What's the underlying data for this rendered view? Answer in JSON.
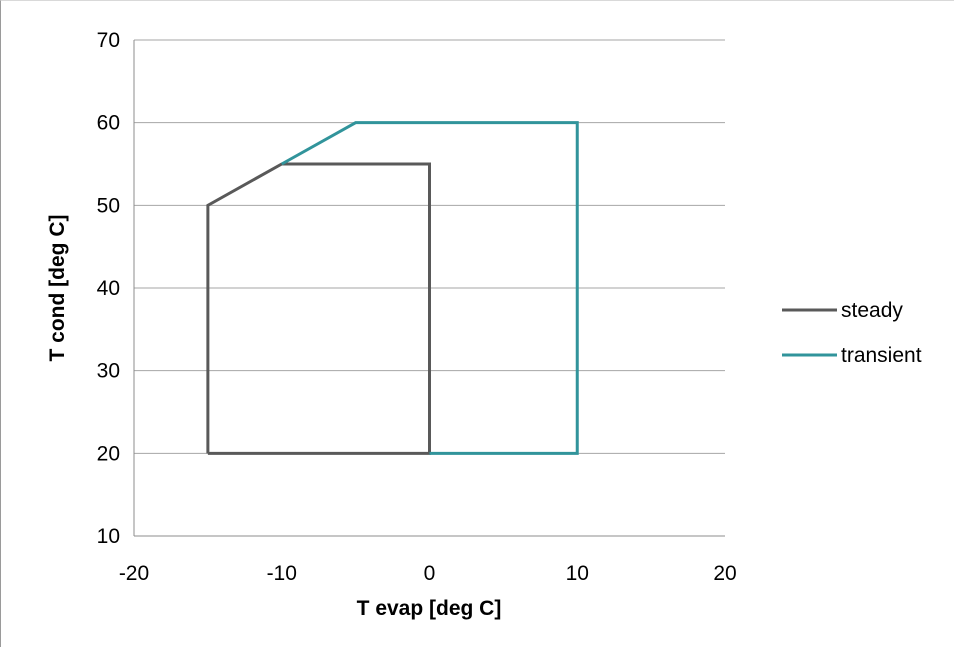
{
  "chart_data": {
    "type": "line",
    "title": "",
    "xlabel": "T evap [deg C]",
    "ylabel": "T cond [deg C]",
    "xlim": [
      -20,
      20
    ],
    "ylim": [
      10,
      70
    ],
    "x_ticks": [
      -20,
      -10,
      0,
      10,
      20
    ],
    "y_ticks": [
      10,
      20,
      30,
      40,
      50,
      60,
      70
    ],
    "grid": "horizontal",
    "legend_position": "right",
    "series": [
      {
        "name": "steady",
        "color": "#595959",
        "points": [
          [
            -15,
            20
          ],
          [
            -15,
            50
          ],
          [
            -10,
            55
          ],
          [
            0,
            55
          ],
          [
            0,
            20
          ],
          [
            -15,
            20
          ]
        ]
      },
      {
        "name": "transient",
        "color": "#31949b",
        "points": [
          [
            -10,
            55
          ],
          [
            -5,
            60
          ],
          [
            10,
            60
          ],
          [
            10,
            20
          ],
          [
            0,
            20
          ]
        ]
      }
    ]
  }
}
